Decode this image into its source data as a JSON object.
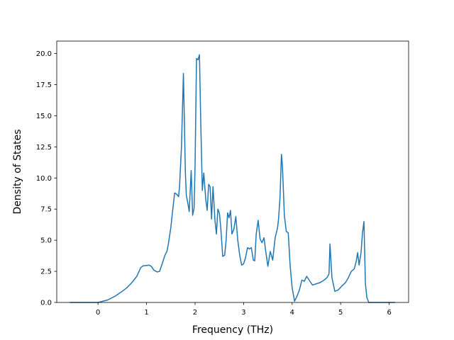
{
  "chart_data": {
    "type": "line",
    "title": "",
    "xlabel": "Frequency (THz)",
    "ylabel": "Density of States",
    "xlim": [
      -0.85,
      6.4
    ],
    "ylim": [
      0,
      21
    ],
    "xticks": [
      0,
      1,
      2,
      3,
      4,
      5,
      6
    ],
    "yticks": [
      0.0,
      2.5,
      5.0,
      7.5,
      10.0,
      12.5,
      15.0,
      17.5,
      20.0
    ],
    "xtick_labels": [
      "0",
      "1",
      "2",
      "3",
      "4",
      "5",
      "6"
    ],
    "ytick_labels": [
      "0.0",
      "2.5",
      "5.0",
      "7.5",
      "10.0",
      "12.5",
      "15.0",
      "17.5",
      "20.0"
    ],
    "grid": false,
    "legend": "none",
    "series_color": "#1f77b4",
    "series": [
      {
        "x": [
          -0.58,
          -0.3,
          0.0,
          0.2,
          0.35,
          0.5,
          0.6,
          0.7,
          0.8,
          0.88,
          0.93,
          0.97,
          1.05,
          1.1,
          1.15,
          1.22,
          1.27,
          1.33,
          1.38,
          1.42,
          1.45,
          1.5,
          1.55,
          1.58,
          1.62,
          1.66,
          1.68,
          1.72,
          1.76,
          1.8,
          1.82,
          1.85,
          1.88,
          1.92,
          1.95,
          1.98,
          2.0,
          2.03,
          2.06,
          2.09,
          2.12,
          2.15,
          2.18,
          2.22,
          2.25,
          2.28,
          2.31,
          2.34,
          2.37,
          2.41,
          2.44,
          2.47,
          2.5,
          2.53,
          2.57,
          2.61,
          2.64,
          2.67,
          2.7,
          2.73,
          2.76,
          2.8,
          2.84,
          2.88,
          2.92,
          2.96,
          3.0,
          3.04,
          3.08,
          3.12,
          3.16,
          3.2,
          3.23,
          3.26,
          3.3,
          3.34,
          3.38,
          3.42,
          3.46,
          3.5,
          3.55,
          3.6,
          3.65,
          3.7,
          3.72,
          3.75,
          3.78,
          3.8,
          3.84,
          3.88,
          3.92,
          3.96,
          4.0,
          4.05,
          4.1,
          4.15,
          4.2,
          4.25,
          4.3,
          4.35,
          4.42,
          4.5,
          4.58,
          4.66,
          4.72,
          4.76,
          4.78,
          4.82,
          4.88,
          4.95,
          5.02,
          5.1,
          5.16,
          5.22,
          5.28,
          5.32,
          5.35,
          5.38,
          5.42,
          5.45,
          5.48,
          5.51,
          5.54,
          5.58,
          5.62,
          5.7,
          5.85,
          6.0,
          6.12
        ],
        "y": [
          0.0,
          0.0,
          0.0,
          0.2,
          0.5,
          0.9,
          1.2,
          1.6,
          2.1,
          2.8,
          2.95,
          2.95,
          3.0,
          2.9,
          2.6,
          2.45,
          2.5,
          3.2,
          3.8,
          4.1,
          4.7,
          6.0,
          7.8,
          8.8,
          8.7,
          8.5,
          9.3,
          12.5,
          18.4,
          10.5,
          8.6,
          8.0,
          7.3,
          10.6,
          7.0,
          7.6,
          11.0,
          19.6,
          19.5,
          19.9,
          14.0,
          9.0,
          10.4,
          8.3,
          7.4,
          9.5,
          9.3,
          6.7,
          9.3,
          6.6,
          5.5,
          7.5,
          7.2,
          6.0,
          3.7,
          3.8,
          5.0,
          7.2,
          6.8,
          7.4,
          5.5,
          5.9,
          6.9,
          5.0,
          3.8,
          3.0,
          3.1,
          3.6,
          4.4,
          4.3,
          4.4,
          3.4,
          3.35,
          5.5,
          6.6,
          5.1,
          4.8,
          5.2,
          4.0,
          2.9,
          4.1,
          3.4,
          5.2,
          6.0,
          6.7,
          8.4,
          11.9,
          11.0,
          7.0,
          5.7,
          5.6,
          2.9,
          1.2,
          0.1,
          0.5,
          1.0,
          1.8,
          1.7,
          2.1,
          1.8,
          1.4,
          1.5,
          1.6,
          1.8,
          2.0,
          2.3,
          4.7,
          2.0,
          0.9,
          1.0,
          1.3,
          1.6,
          2.0,
          2.5,
          2.7,
          3.3,
          4.0,
          3.0,
          4.0,
          5.6,
          6.5,
          1.5,
          0.4,
          0.0,
          0.0,
          0.0,
          0.0,
          0.0,
          0.0
        ]
      }
    ]
  }
}
